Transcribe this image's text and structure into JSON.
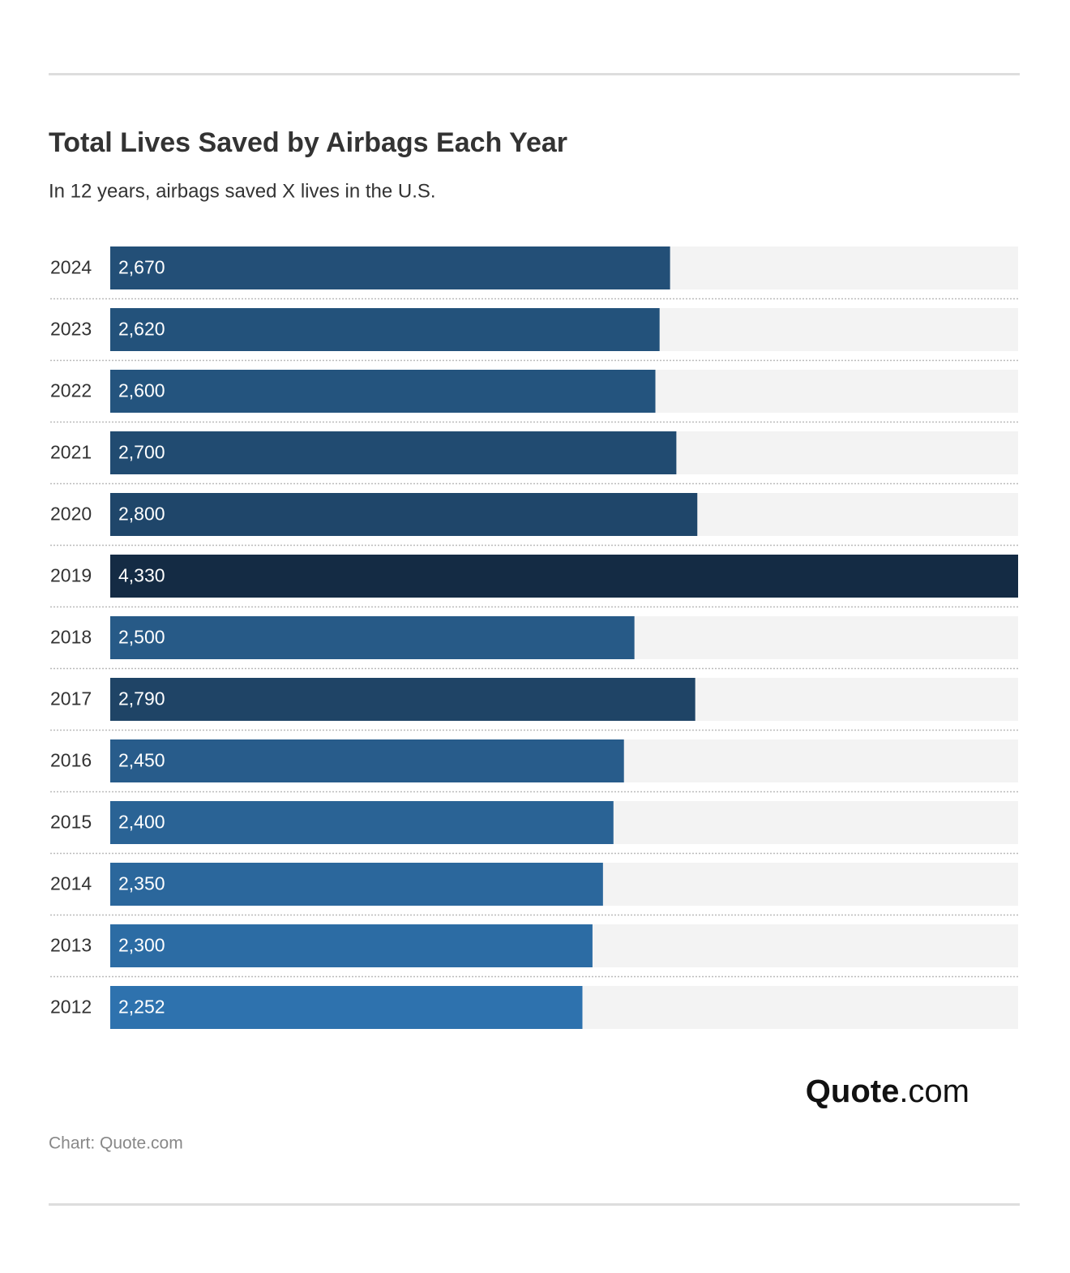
{
  "chart_data": {
    "type": "bar",
    "title": "Total Lives Saved by Airbags Each Year",
    "subtitle": "In 12 years, airbags saved X lives in the U.S.",
    "categories": [
      "2024",
      "2023",
      "2022",
      "2021",
      "2020",
      "2019",
      "2018",
      "2017",
      "2016",
      "2015",
      "2014",
      "2013",
      "2012"
    ],
    "values": [
      2670,
      2620,
      2600,
      2700,
      2800,
      4330,
      2500,
      2790,
      2450,
      2400,
      2350,
      2300,
      2252
    ],
    "value_labels": [
      "2,670",
      "2,620",
      "2,600",
      "2,700",
      "2,800",
      "4,330",
      "2,500",
      "2,790",
      "2,450",
      "2,400",
      "2,350",
      "2,300",
      "2,252"
    ],
    "colors": [
      "#234f77",
      "#23527b",
      "#24547e",
      "#214b71",
      "#1f466a",
      "#142b44",
      "#275a87",
      "#1f4466",
      "#285c8b",
      "#2a6395",
      "#2b679c",
      "#2c6ca4",
      "#2e72ae"
    ],
    "source": "Chart: Quote.com",
    "logo": {
      "bold": "Quote",
      "rest": ".com"
    }
  }
}
